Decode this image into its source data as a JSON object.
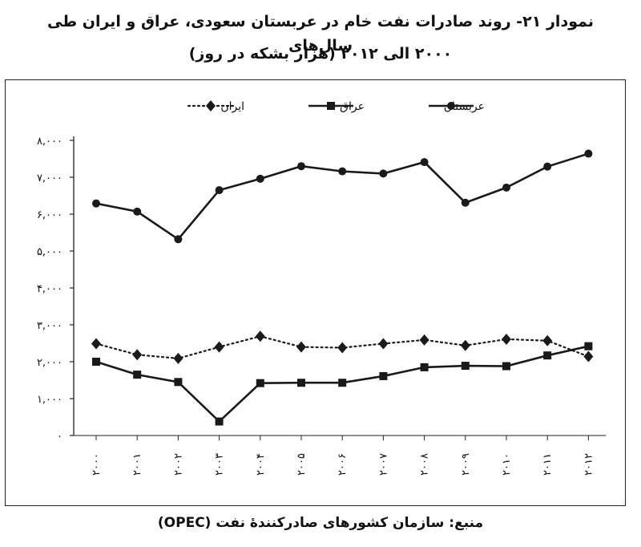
{
  "title_line1": "نمودار ۲۱- روند صادرات نفت خام در عربستان سعودی، عراق و ایران طی سال‌های",
  "title_line2": "۲۰۰۰ الی ۲۰۱۲ (هزار بشکه در روز)",
  "source": "منبع: سازمان کشورهای صادرکنندهٔ نفت (OPEC)",
  "chart_data": {
    "type": "line",
    "categories": [
      "۲۰۰۰",
      "۲۰۰۱",
      "۲۰۰۲",
      "۲۰۰۳",
      "۲۰۰۴",
      "۲۰۰۵",
      "۲۰۰۶",
      "۲۰۰۷",
      "۲۰۰۸",
      "۲۰۰۹",
      "۲۰۱۰",
      "۲۰۱۱",
      "۲۰۱۲"
    ],
    "y_ticks": [
      0,
      1000,
      2000,
      3000,
      4000,
      5000,
      6000,
      7000,
      8000
    ],
    "y_tick_labels": [
      "۰",
      "۱,۰۰۰",
      "۲,۰۰۰",
      "۳,۰۰۰",
      "۴,۰۰۰",
      "۵,۰۰۰",
      "۶,۰۰۰",
      "۷,۰۰۰",
      "۸,۰۰۰"
    ],
    "ylim": [
      0,
      8000
    ],
    "legend_position": "top",
    "series": [
      {
        "name": "عربستان",
        "marker": "circle",
        "line": "solid",
        "color": "#1a1a1a",
        "values": [
          6290,
          6070,
          5320,
          6650,
          6960,
          7300,
          7160,
          7100,
          7410,
          6310,
          6720,
          7290,
          7640
        ]
      },
      {
        "name": "عراق",
        "marker": "square",
        "line": "solid",
        "color": "#1a1a1a",
        "values": [
          2000,
          1650,
          1450,
          380,
          1420,
          1430,
          1430,
          1610,
          1850,
          1890,
          1880,
          2170,
          2420
        ]
      },
      {
        "name": "ایران",
        "marker": "diamond",
        "line": "dotted",
        "color": "#1a1a1a",
        "values": [
          2490,
          2190,
          2090,
          2400,
          2690,
          2400,
          2380,
          2490,
          2590,
          2440,
          2610,
          2570,
          2140
        ]
      }
    ]
  }
}
